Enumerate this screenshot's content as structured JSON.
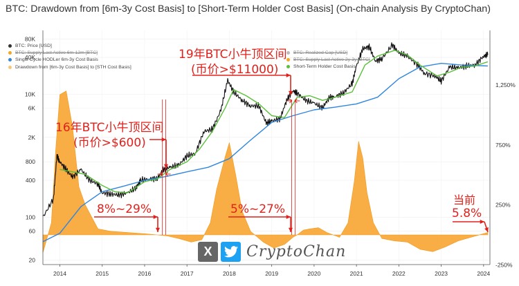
{
  "title": "BTC: Drawdown from [6m-3y Cost Basis] to [Short-Term Holder Cost Basis] (On-chain Analysis By CryptoChan)",
  "legend_left": [
    {
      "label": "BTC: Price [USD]",
      "color": "#333333",
      "struck": false
    },
    {
      "label": "BTC: Supply Last Active 6m-12m [BTC]",
      "color": "#f5a623",
      "struck": true
    },
    {
      "label": "Single Cycle HODLer 6m-3y Cost Basis",
      "color": "#2e86de",
      "struck": false
    },
    {
      "label": "Drawdown from [6m-3y Cost Basis] to [STH Cost Basis]",
      "color": "#f7c873",
      "struck": false
    }
  ],
  "legend_right": [
    {
      "label": "BTC: Realized Cap [USD]",
      "color": "#bbbbbb",
      "struck": true
    },
    {
      "label": "BTC: Supply Last Active 2y-3y [BTC]",
      "color": "#f5a623",
      "struck": true
    },
    {
      "label": "Short-Term Holder Cost Basis",
      "color": "#5cbf3a",
      "struck": false
    }
  ],
  "annotations": {
    "top2016_title": "16年BTC小牛顶区间",
    "top2016_price": "(币价>$600)",
    "dd2016": "8%~29%",
    "top2019_title": "19年BTC小牛顶区间",
    "top2019_price": "(币价>$11000)",
    "dd2019": "5%~27%",
    "current_label": "当前",
    "current_value": "5.8%"
  },
  "watermark": {
    "text": "CryptoChan",
    "icon_x": "X",
    "icon_bird": "twitter-bird"
  },
  "chart_data": {
    "type": "line",
    "x_ticks": [
      "2014",
      "2015",
      "2016",
      "2017",
      "2018",
      "2019",
      "2020",
      "2021",
      "2022",
      "2023",
      "2024"
    ],
    "y_left_ticks": [
      "20",
      "60",
      "100",
      "400",
      "800",
      "2K",
      "6K",
      "10K",
      "40K",
      "80K"
    ],
    "y_left_scale": "log",
    "y_right_ticks": [
      "1,250%",
      "750%",
      "250%",
      "-250%"
    ],
    "y_right_range": [
      -250,
      1500
    ],
    "x_range": [
      2013.6,
      2024.15
    ],
    "y_left_range": [
      17,
      110000
    ],
    "series": [
      {
        "name": "BTC: Price [USD]",
        "color": "#111111",
        "x": [
          2013.6,
          2013.85,
          2013.93,
          2014.0,
          2014.15,
          2014.3,
          2014.5,
          2014.7,
          2014.9,
          2015.0,
          2015.2,
          2015.4,
          2015.6,
          2015.8,
          2015.9,
          2016.1,
          2016.3,
          2016.45,
          2016.6,
          2016.8,
          2017.0,
          2017.2,
          2017.4,
          2017.6,
          2017.8,
          2017.96,
          2018.1,
          2018.3,
          2018.5,
          2018.7,
          2018.87,
          2019.0,
          2019.2,
          2019.35,
          2019.5,
          2019.6,
          2019.8,
          2020.0,
          2020.2,
          2020.35,
          2020.5,
          2020.7,
          2020.9,
          2021.0,
          2021.15,
          2021.3,
          2021.45,
          2021.6,
          2021.85,
          2022.0,
          2022.2,
          2022.45,
          2022.6,
          2022.85,
          2023.0,
          2023.2,
          2023.4,
          2023.6,
          2023.8,
          2024.0,
          2024.1
        ],
        "y": [
          100,
          200,
          1000,
          800,
          600,
          450,
          600,
          400,
          350,
          250,
          240,
          230,
          250,
          300,
          400,
          420,
          430,
          600,
          650,
          700,
          1000,
          1100,
          2500,
          2700,
          5500,
          17000,
          11000,
          8000,
          6500,
          6500,
          3400,
          3700,
          4000,
          8000,
          11500,
          10500,
          8000,
          7200,
          6000,
          8800,
          9200,
          10700,
          15000,
          29000,
          55000,
          60000,
          35000,
          38000,
          64000,
          47000,
          42000,
          30000,
          22000,
          20000,
          16500,
          28000,
          27000,
          29000,
          30000,
          42000,
          44000
        ]
      },
      {
        "name": "Single Cycle HODLer 6m-3y Cost Basis",
        "color": "#2e86de",
        "x": [
          2013.6,
          2014.0,
          2014.5,
          2015.0,
          2015.5,
          2016.0,
          2016.5,
          2017.0,
          2017.5,
          2018.0,
          2018.5,
          2019.0,
          2019.5,
          2020.0,
          2020.5,
          2021.0,
          2021.5,
          2022.0,
          2022.5,
          2023.0,
          2023.5,
          2024.1
        ],
        "y": [
          40,
          55,
          150,
          260,
          320,
          400,
          460,
          550,
          650,
          900,
          1800,
          3500,
          4500,
          5600,
          6200,
          7000,
          9000,
          18000,
          28000,
          32000,
          30000,
          29000
        ]
      },
      {
        "name": "Short-Term Holder Cost Basis",
        "color": "#5cbf3a",
        "x": [
          2014.0,
          2014.3,
          2014.6,
          2015.0,
          2015.3,
          2015.6,
          2016.0,
          2016.3,
          2016.6,
          2017.0,
          2017.3,
          2017.6,
          2017.9,
          2018.1,
          2018.4,
          2018.7,
          2019.0,
          2019.3,
          2019.6,
          2019.9,
          2020.2,
          2020.5,
          2020.9,
          2021.2,
          2021.5,
          2021.9,
          2022.2,
          2022.5,
          2022.9,
          2023.2,
          2023.5,
          2023.8,
          2024.1
        ],
        "y": [
          600,
          550,
          500,
          330,
          260,
          250,
          380,
          420,
          600,
          800,
          1300,
          2500,
          6000,
          12000,
          9500,
          7000,
          4500,
          4200,
          9000,
          9500,
          8000,
          9000,
          11000,
          30000,
          42000,
          52000,
          44000,
          30000,
          20000,
          23000,
          28000,
          29000,
          34000
        ]
      }
    ],
    "area_series": {
      "name": "Drawdown from [6m-3y Cost Basis] to [STH Cost Basis]",
      "color": "#f7a431",
      "x": [
        2013.6,
        2013.8,
        2013.9,
        2014.0,
        2014.15,
        2014.3,
        2014.45,
        2014.6,
        2014.75,
        2014.9,
        2015.2,
        2015.6,
        2016.0,
        2016.3,
        2016.55,
        2016.8,
        2017.1,
        2017.35,
        2017.55,
        2017.7,
        2017.9,
        2018.0,
        2018.15,
        2018.3,
        2018.5,
        2018.8,
        2019.05,
        2019.3,
        2019.5,
        2019.6,
        2019.75,
        2019.9,
        2020.1,
        2020.3,
        2020.6,
        2020.8,
        2020.95,
        2021.05,
        2021.15,
        2021.25,
        2021.4,
        2021.6,
        2021.9,
        2022.2,
        2022.5,
        2022.8,
        2023.1,
        2023.4,
        2023.7,
        2024.1
      ],
      "y": [
        -150,
        100,
        700,
        1170,
        1200,
        900,
        400,
        250,
        150,
        50,
        30,
        20,
        10,
        0,
        -10,
        -30,
        -60,
        -40,
        100,
        380,
        650,
        770,
        500,
        200,
        30,
        -60,
        -110,
        -80,
        -20,
        0,
        40,
        50,
        60,
        20,
        -20,
        100,
        450,
        780,
        640,
        350,
        100,
        -30,
        -50,
        -60,
        -120,
        -140,
        -100,
        -50,
        -20,
        20
      ]
    },
    "highlight_periods": [
      {
        "label": "16年BTC小牛顶区间",
        "x": [
          2016.42,
          2016.5
        ]
      },
      {
        "label": "19年BTC小牛顶区间",
        "x": [
          2019.47,
          2019.55
        ]
      }
    ],
    "axis_colors": {
      "left": "#333333",
      "right": "#333333"
    }
  }
}
